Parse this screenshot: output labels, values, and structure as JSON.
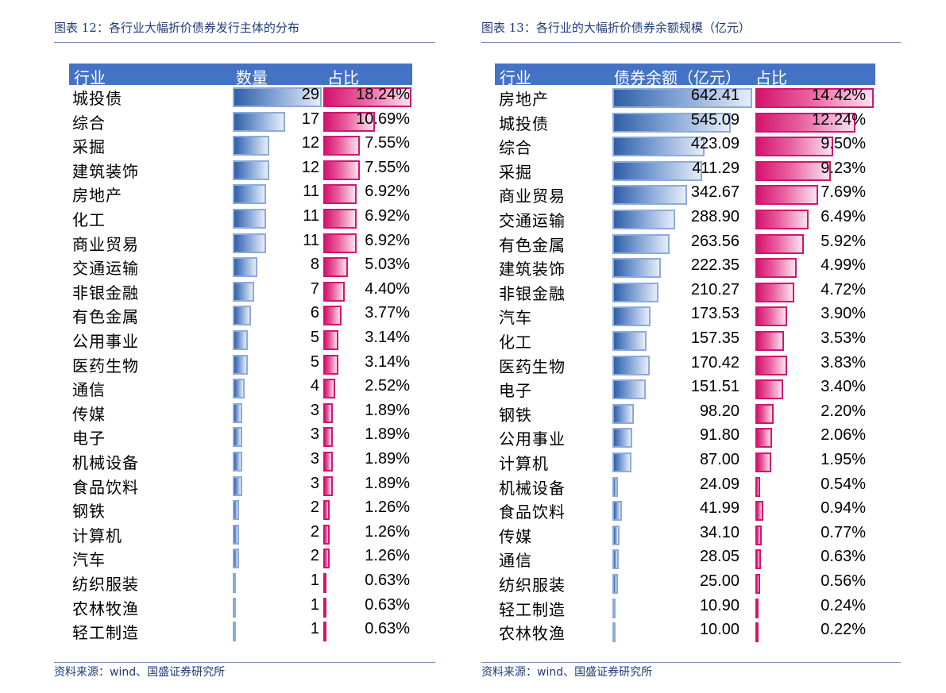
{
  "colors": {
    "header_bg": "#4472c4",
    "blue_bar": "#4a78c0",
    "pink_bar": "#d4146e",
    "caption": "#1f3c78"
  },
  "left": {
    "caption": "图表 12：各行业大幅折价债券发行主体的分布",
    "headers": {
      "col1": "行业",
      "col2": "数量",
      "col3": "占比"
    },
    "source": "资料来源：wind、国盛证券研究所",
    "chart_data": {
      "type": "table",
      "title": "各行业大幅折价债券发行主体的分布",
      "columns": [
        "行业",
        "数量",
        "占比"
      ],
      "rows": [
        {
          "industry": "城投债",
          "count": "29",
          "share": "18.24%",
          "count_v": 29,
          "share_v": 18.24
        },
        {
          "industry": "综合",
          "count": "17",
          "share": "10.69%",
          "count_v": 17,
          "share_v": 10.69
        },
        {
          "industry": "采掘",
          "count": "12",
          "share": "7.55%",
          "count_v": 12,
          "share_v": 7.55
        },
        {
          "industry": "建筑装饰",
          "count": "12",
          "share": "7.55%",
          "count_v": 12,
          "share_v": 7.55
        },
        {
          "industry": "房地产",
          "count": "11",
          "share": "6.92%",
          "count_v": 11,
          "share_v": 6.92
        },
        {
          "industry": "化工",
          "count": "11",
          "share": "6.92%",
          "count_v": 11,
          "share_v": 6.92
        },
        {
          "industry": "商业贸易",
          "count": "11",
          "share": "6.92%",
          "count_v": 11,
          "share_v": 6.92
        },
        {
          "industry": "交通运输",
          "count": "8",
          "share": "5.03%",
          "count_v": 8,
          "share_v": 5.03
        },
        {
          "industry": "非银金融",
          "count": "7",
          "share": "4.40%",
          "count_v": 7,
          "share_v": 4.4
        },
        {
          "industry": "有色金属",
          "count": "6",
          "share": "3.77%",
          "count_v": 6,
          "share_v": 3.77
        },
        {
          "industry": "公用事业",
          "count": "5",
          "share": "3.14%",
          "count_v": 5,
          "share_v": 3.14
        },
        {
          "industry": "医药生物",
          "count": "5",
          "share": "3.14%",
          "count_v": 5,
          "share_v": 3.14
        },
        {
          "industry": "通信",
          "count": "4",
          "share": "2.52%",
          "count_v": 4,
          "share_v": 2.52
        },
        {
          "industry": "传媒",
          "count": "3",
          "share": "1.89%",
          "count_v": 3,
          "share_v": 1.89
        },
        {
          "industry": "电子",
          "count": "3",
          "share": "1.89%",
          "count_v": 3,
          "share_v": 1.89
        },
        {
          "industry": "机械设备",
          "count": "3",
          "share": "1.89%",
          "count_v": 3,
          "share_v": 1.89
        },
        {
          "industry": "食品饮料",
          "count": "3",
          "share": "1.89%",
          "count_v": 3,
          "share_v": 1.89
        },
        {
          "industry": "钢铁",
          "count": "2",
          "share": "1.26%",
          "count_v": 2,
          "share_v": 1.26
        },
        {
          "industry": "计算机",
          "count": "2",
          "share": "1.26%",
          "count_v": 2,
          "share_v": 1.26
        },
        {
          "industry": "汽车",
          "count": "2",
          "share": "1.26%",
          "count_v": 2,
          "share_v": 1.26
        },
        {
          "industry": "纺织服装",
          "count": "1",
          "share": "0.63%",
          "count_v": 1,
          "share_v": 0.63
        },
        {
          "industry": "农林牧渔",
          "count": "1",
          "share": "0.63%",
          "count_v": 1,
          "share_v": 0.63
        },
        {
          "industry": "轻工制造",
          "count": "1",
          "share": "0.63%",
          "count_v": 1,
          "share_v": 0.63
        }
      ]
    }
  },
  "right": {
    "caption": "图表 13：各行业的大幅折价债券余额规模（亿元）",
    "headers": {
      "col1": "行业",
      "col2": "债券余额（亿元）",
      "col3": "占比"
    },
    "source": "资料来源：wind、国盛证券研究所",
    "chart_data": {
      "type": "table",
      "title": "各行业的大幅折价债券余额规模（亿元）",
      "columns": [
        "行业",
        "债券余额（亿元）",
        "占比"
      ],
      "rows": [
        {
          "industry": "房地产",
          "count": "642.41",
          "share": "14.42%",
          "count_v": 642.41,
          "share_v": 14.42
        },
        {
          "industry": "城投债",
          "count": "545.09",
          "share": "12.24%",
          "count_v": 545.09,
          "share_v": 12.24
        },
        {
          "industry": "综合",
          "count": "423.09",
          "share": "9.50%",
          "count_v": 423.09,
          "share_v": 9.5
        },
        {
          "industry": "采掘",
          "count": "411.29",
          "share": "9.23%",
          "count_v": 411.29,
          "share_v": 9.23
        },
        {
          "industry": "商业贸易",
          "count": "342.67",
          "share": "7.69%",
          "count_v": 342.67,
          "share_v": 7.69
        },
        {
          "industry": "交通运输",
          "count": "288.90",
          "share": "6.49%",
          "count_v": 288.9,
          "share_v": 6.49
        },
        {
          "industry": "有色金属",
          "count": "263.56",
          "share": "5.92%",
          "count_v": 263.56,
          "share_v": 5.92
        },
        {
          "industry": "建筑装饰",
          "count": "222.35",
          "share": "4.99%",
          "count_v": 222.35,
          "share_v": 4.99
        },
        {
          "industry": "非银金融",
          "count": "210.27",
          "share": "4.72%",
          "count_v": 210.27,
          "share_v": 4.72
        },
        {
          "industry": "汽车",
          "count": "173.53",
          "share": "3.90%",
          "count_v": 173.53,
          "share_v": 3.9
        },
        {
          "industry": "化工",
          "count": "157.35",
          "share": "3.53%",
          "count_v": 157.35,
          "share_v": 3.53
        },
        {
          "industry": "医药生物",
          "count": "170.42",
          "share": "3.83%",
          "count_v": 170.42,
          "share_v": 3.83
        },
        {
          "industry": "电子",
          "count": "151.51",
          "share": "3.40%",
          "count_v": 151.51,
          "share_v": 3.4
        },
        {
          "industry": "钢铁",
          "count": "98.20",
          "share": "2.20%",
          "count_v": 98.2,
          "share_v": 2.2
        },
        {
          "industry": "公用事业",
          "count": "91.80",
          "share": "2.06%",
          "count_v": 91.8,
          "share_v": 2.06
        },
        {
          "industry": "计算机",
          "count": "87.00",
          "share": "1.95%",
          "count_v": 87.0,
          "share_v": 1.95
        },
        {
          "industry": "机械设备",
          "count": "24.09",
          "share": "0.54%",
          "count_v": 24.09,
          "share_v": 0.54
        },
        {
          "industry": "食品饮料",
          "count": "41.99",
          "share": "0.94%",
          "count_v": 41.99,
          "share_v": 0.94
        },
        {
          "industry": "传媒",
          "count": "34.10",
          "share": "0.77%",
          "count_v": 34.1,
          "share_v": 0.77
        },
        {
          "industry": "通信",
          "count": "28.05",
          "share": "0.63%",
          "count_v": 28.05,
          "share_v": 0.63
        },
        {
          "industry": "纺织服装",
          "count": "25.00",
          "share": "0.56%",
          "count_v": 25.0,
          "share_v": 0.56
        },
        {
          "industry": "轻工制造",
          "count": "10.90",
          "share": "0.24%",
          "count_v": 10.9,
          "share_v": 0.24
        },
        {
          "industry": "农林牧渔",
          "count": "10.00",
          "share": "0.22%",
          "count_v": 10.0,
          "share_v": 0.22
        }
      ]
    }
  }
}
